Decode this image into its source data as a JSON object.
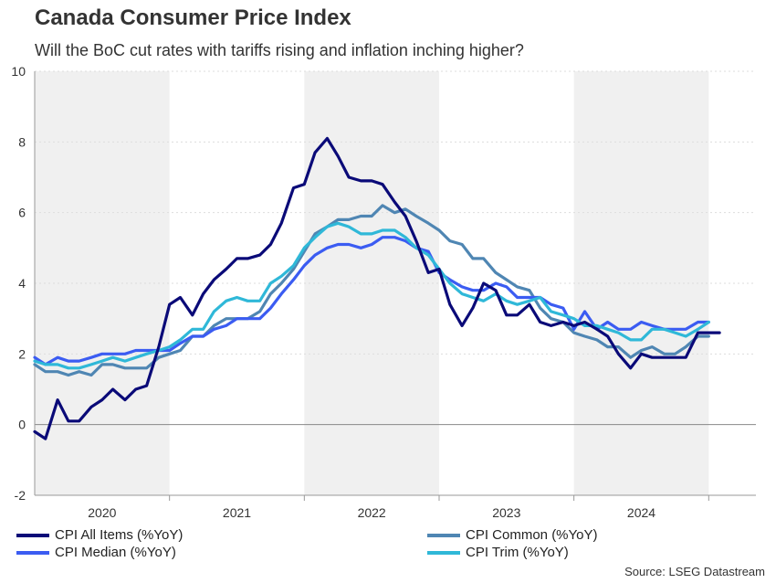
{
  "header": {
    "title": "Canada Consumer Price Index",
    "subtitle": "Will the BoC cut rates with tariffs rising and inflation inching higher?"
  },
  "source": "Source: LSEG Datastream",
  "colors": {
    "cpi_all": "#0a0a78",
    "cpi_common": "#4f86b3",
    "cpi_median": "#3b5cf2",
    "cpi_trim": "#2fb8d8",
    "shade": "#f0f0f0",
    "grid": "#dddddd"
  },
  "chart_data": {
    "type": "line",
    "title": "Canada Consumer Price Index",
    "xlabel": "",
    "ylabel": "",
    "ylim": [
      -2,
      10
    ],
    "yticks": [
      -2,
      0,
      2,
      4,
      6,
      8,
      10
    ],
    "xlim": [
      2020.0,
      2025.35
    ],
    "years": [
      "2020",
      "2021",
      "2022",
      "2023",
      "2024"
    ],
    "shaded_years": [
      "2020",
      "2022",
      "2024"
    ],
    "grid": true,
    "series": [
      {
        "name": "CPI All Items (%YoY)",
        "color": "#0a0a78",
        "x": [
          2020.0,
          2020.08,
          2020.17,
          2020.25,
          2020.33,
          2020.42,
          2020.5,
          2020.58,
          2020.67,
          2020.75,
          2020.83,
          2020.92,
          2021.0,
          2021.08,
          2021.17,
          2021.25,
          2021.33,
          2021.42,
          2021.5,
          2021.58,
          2021.67,
          2021.75,
          2021.83,
          2021.92,
          2022.0,
          2022.08,
          2022.17,
          2022.25,
          2022.33,
          2022.42,
          2022.5,
          2022.58,
          2022.67,
          2022.75,
          2022.83,
          2022.92,
          2023.0,
          2023.08,
          2023.17,
          2023.25,
          2023.33,
          2023.42,
          2023.5,
          2023.58,
          2023.67,
          2023.75,
          2023.83,
          2023.92,
          2024.0,
          2024.08,
          2024.17,
          2024.25,
          2024.33,
          2024.42,
          2024.5,
          2024.58,
          2024.67,
          2024.75,
          2024.83,
          2024.92,
          2025.0,
          2025.08
        ],
        "values": [
          -0.2,
          -0.4,
          0.7,
          0.1,
          0.1,
          0.5,
          0.7,
          1.0,
          0.7,
          1.0,
          1.1,
          2.2,
          3.4,
          3.6,
          3.1,
          3.7,
          4.1,
          4.4,
          4.7,
          4.7,
          4.8,
          5.1,
          5.7,
          6.7,
          6.8,
          7.7,
          8.1,
          7.6,
          7.0,
          6.9,
          6.9,
          6.8,
          6.3,
          5.9,
          5.2,
          4.3,
          4.4,
          3.4,
          2.8,
          3.3,
          4.0,
          3.8,
          3.1,
          3.1,
          3.4,
          2.9,
          2.8,
          2.9,
          2.8,
          2.9,
          2.7,
          2.5,
          2.0,
          1.6,
          2.0,
          1.9,
          1.9,
          1.9,
          1.9,
          2.6,
          2.6,
          2.6
        ]
      },
      {
        "name": "CPI Common (%YoY)",
        "color": "#4f86b3",
        "x": [
          2020.0,
          2020.08,
          2020.17,
          2020.25,
          2020.33,
          2020.42,
          2020.5,
          2020.58,
          2020.67,
          2020.75,
          2020.83,
          2020.92,
          2021.0,
          2021.08,
          2021.17,
          2021.25,
          2021.33,
          2021.42,
          2021.5,
          2021.58,
          2021.67,
          2021.75,
          2021.83,
          2021.92,
          2022.0,
          2022.08,
          2022.17,
          2022.25,
          2022.33,
          2022.42,
          2022.5,
          2022.58,
          2022.67,
          2022.75,
          2022.83,
          2022.92,
          2023.0,
          2023.08,
          2023.17,
          2023.25,
          2023.33,
          2023.42,
          2023.5,
          2023.58,
          2023.67,
          2023.75,
          2023.83,
          2023.92,
          2024.0,
          2024.08,
          2024.17,
          2024.25,
          2024.33,
          2024.42,
          2024.5,
          2024.58,
          2024.67,
          2024.75,
          2024.83,
          2024.92,
          2025.0
        ],
        "values": [
          1.7,
          1.5,
          1.5,
          1.4,
          1.5,
          1.4,
          1.7,
          1.7,
          1.6,
          1.6,
          1.6,
          1.9,
          2.0,
          2.1,
          2.5,
          2.5,
          2.8,
          3.0,
          3.0,
          3.0,
          3.2,
          3.7,
          4.0,
          4.4,
          4.9,
          5.4,
          5.6,
          5.8,
          5.8,
          5.9,
          5.9,
          6.2,
          6.0,
          6.1,
          5.9,
          5.7,
          5.5,
          5.2,
          5.1,
          4.7,
          4.7,
          4.3,
          4.1,
          3.9,
          3.8,
          3.3,
          3.0,
          2.9,
          2.6,
          2.5,
          2.4,
          2.2,
          2.2,
          1.9,
          2.1,
          2.2,
          2.0,
          2.0,
          2.2,
          2.5,
          2.5
        ]
      },
      {
        "name": "CPI Median (%YoY)",
        "color": "#3b5cf2",
        "x": [
          2020.0,
          2020.08,
          2020.17,
          2020.25,
          2020.33,
          2020.42,
          2020.5,
          2020.58,
          2020.67,
          2020.75,
          2020.83,
          2020.92,
          2021.0,
          2021.08,
          2021.17,
          2021.25,
          2021.33,
          2021.42,
          2021.5,
          2021.58,
          2021.67,
          2021.75,
          2021.83,
          2021.92,
          2022.0,
          2022.08,
          2022.17,
          2022.25,
          2022.33,
          2022.42,
          2022.5,
          2022.58,
          2022.67,
          2022.75,
          2022.83,
          2022.92,
          2023.0,
          2023.08,
          2023.17,
          2023.25,
          2023.33,
          2023.42,
          2023.5,
          2023.58,
          2023.67,
          2023.75,
          2023.83,
          2023.92,
          2024.0,
          2024.08,
          2024.17,
          2024.25,
          2024.33,
          2024.42,
          2024.5,
          2024.58,
          2024.67,
          2024.75,
          2024.83,
          2024.92,
          2025.0
        ],
        "values": [
          1.9,
          1.7,
          1.9,
          1.8,
          1.8,
          1.9,
          2.0,
          2.0,
          2.0,
          2.1,
          2.1,
          2.1,
          2.1,
          2.3,
          2.5,
          2.5,
          2.7,
          2.8,
          3.0,
          3.0,
          3.0,
          3.3,
          3.7,
          4.1,
          4.5,
          4.8,
          5.0,
          5.1,
          5.1,
          5.0,
          5.1,
          5.3,
          5.3,
          5.2,
          5.0,
          4.9,
          4.3,
          4.1,
          3.9,
          3.8,
          3.8,
          4.0,
          3.9,
          3.6,
          3.6,
          3.6,
          3.4,
          3.3,
          2.7,
          3.2,
          2.7,
          2.9,
          2.7,
          2.7,
          2.9,
          2.8,
          2.7,
          2.7,
          2.7,
          2.9,
          2.9
        ]
      },
      {
        "name": "CPI Trim (%YoY)",
        "color": "#2fb8d8",
        "x": [
          2020.0,
          2020.08,
          2020.17,
          2020.25,
          2020.33,
          2020.42,
          2020.5,
          2020.58,
          2020.67,
          2020.75,
          2020.83,
          2020.92,
          2021.0,
          2021.08,
          2021.17,
          2021.25,
          2021.33,
          2021.42,
          2021.5,
          2021.58,
          2021.67,
          2021.75,
          2021.83,
          2021.92,
          2022.0,
          2022.08,
          2022.17,
          2022.25,
          2022.33,
          2022.42,
          2022.5,
          2022.58,
          2022.67,
          2022.75,
          2022.83,
          2022.92,
          2023.0,
          2023.08,
          2023.17,
          2023.25,
          2023.33,
          2023.42,
          2023.5,
          2023.58,
          2023.67,
          2023.75,
          2023.83,
          2023.92,
          2024.0,
          2024.08,
          2024.17,
          2024.25,
          2024.33,
          2024.42,
          2024.5,
          2024.58,
          2024.67,
          2024.75,
          2024.83,
          2024.92,
          2025.0
        ],
        "values": [
          1.8,
          1.7,
          1.7,
          1.6,
          1.6,
          1.7,
          1.8,
          1.9,
          1.8,
          1.9,
          2.0,
          2.1,
          2.2,
          2.4,
          2.7,
          2.7,
          3.2,
          3.5,
          3.6,
          3.5,
          3.5,
          4.0,
          4.2,
          4.5,
          5.0,
          5.3,
          5.6,
          5.7,
          5.6,
          5.4,
          5.4,
          5.5,
          5.5,
          5.3,
          5.0,
          4.8,
          4.4,
          4.0,
          3.7,
          3.6,
          3.5,
          3.7,
          3.5,
          3.4,
          3.5,
          3.6,
          3.2,
          3.1,
          3.0,
          2.8,
          2.8,
          2.7,
          2.6,
          2.4,
          2.4,
          2.7,
          2.7,
          2.6,
          2.5,
          2.7,
          2.9
        ]
      }
    ]
  }
}
